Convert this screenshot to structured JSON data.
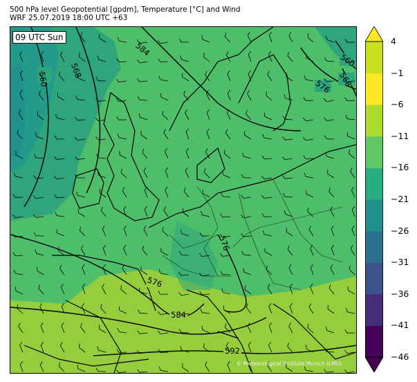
{
  "title": {
    "line1": "500 hPa level Geopotential [gpdm], Temperature [°C] and Wind",
    "line2": "WRF 25.07.2019 18:00 UTC +63"
  },
  "time_badge": "09 UTC Sun",
  "credit": "© Meteorological Institute Munich (LMU)",
  "contour_labels": [
    "560",
    "568",
    "584",
    "576",
    "560",
    "568",
    "576",
    "584",
    "592",
    "576"
  ],
  "colorbar": {
    "labels": [
      "4",
      "−1",
      "−6",
      "−11",
      "−16",
      "−21",
      "−26",
      "−31",
      "−36",
      "−41",
      "−46"
    ],
    "colors": [
      "#450457",
      "#472d7b",
      "#3b528b",
      "#2c728e",
      "#21918c",
      "#28ae80",
      "#5ec962",
      "#addc30",
      "#fde725"
    ]
  },
  "map_colors": {
    "south_warm": "#96cd3c",
    "main": "#4fbe6a",
    "mid": "#2ea57a",
    "cold": "#239b8a"
  }
}
